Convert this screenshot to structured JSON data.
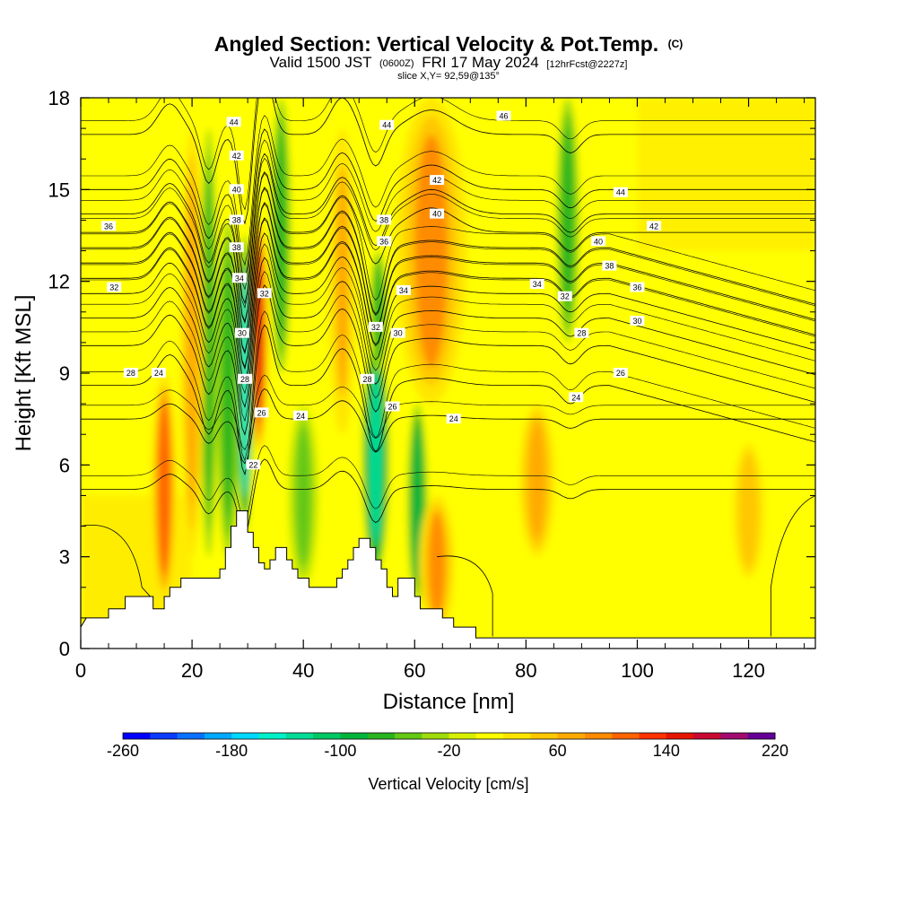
{
  "title": {
    "main": "Angled Section: Vertical Velocity & Pot.Temp.",
    "main_suffix": "(C)",
    "valid_prefix": "Valid 1500 JST",
    "valid_z": "(0600Z)",
    "valid_date": "FRI 17 May 2024",
    "fcst": "[12hrFcst@2227z]",
    "slice": "slice X,Y= 92,59@135°"
  },
  "chart_data": {
    "type": "heatmap",
    "title": "Angled Section: Vertical Velocity & Pot.Temp.",
    "xlabel": "Distance [nm]",
    "ylabel": "Height [Kft MSL]",
    "xlim": [
      0,
      132
    ],
    "ylim": [
      0,
      18
    ],
    "x_ticks": [
      "0",
      "20",
      "40",
      "60",
      "80",
      "100",
      "120"
    ],
    "y_ticks": [
      "0",
      "3",
      "6",
      "9",
      "12",
      "15",
      "18"
    ],
    "colorbar": {
      "title": "Vertical Velocity [cm/s]",
      "min": -260,
      "max": 220,
      "step": 20,
      "tick_labels": [
        "-260",
        "-180",
        "-100",
        "-20",
        "60",
        "140",
        "220"
      ],
      "tick_values": [
        -260,
        -180,
        -100,
        -20,
        60,
        140,
        220
      ],
      "colors": [
        "#0000ff",
        "#0a3cff",
        "#0a70ff",
        "#00a8ff",
        "#00d8ff",
        "#00f0c8",
        "#00dc96",
        "#00c864",
        "#00b43c",
        "#28b41e",
        "#64c814",
        "#a0dc0a",
        "#d7f000",
        "#ffff00",
        "#ffe600",
        "#ffc800",
        "#ffaa00",
        "#ff8c00",
        "#ff6400",
        "#ff3200",
        "#e61400",
        "#c80a32",
        "#a00a6e",
        "#640096"
      ]
    },
    "velocity_features": [
      {
        "x": 32,
        "y0": 6.5,
        "y1": 14,
        "w": 150,
        "half_width": 1.3,
        "sense": "updraft"
      },
      {
        "x": 29.5,
        "y0": 3.8,
        "y1": 13.5,
        "w": -150,
        "half_width": 1.1,
        "sense": "downdraft"
      },
      {
        "x": 26.5,
        "y0": 3.0,
        "y1": 14,
        "w": -80,
        "half_width": 1.6,
        "sense": "downdraft"
      },
      {
        "x": 23,
        "y0": 3.0,
        "y1": 17,
        "w": -70,
        "half_width": 1.2,
        "sense": "downdraft"
      },
      {
        "x": 20,
        "y0": 3.0,
        "y1": 17,
        "w": 70,
        "half_width": 1.6,
        "sense": "updraft"
      },
      {
        "x": 15,
        "y0": 1.5,
        "y1": 9,
        "w": 100,
        "half_width": 1.8,
        "sense": "updraft"
      },
      {
        "x": 36,
        "y0": 9.0,
        "y1": 18,
        "w": -70,
        "half_width": 1.4,
        "sense": "downdraft"
      },
      {
        "x": 40,
        "y0": 2.0,
        "y1": 8,
        "w": -45,
        "half_width": 2.2,
        "sense": "downdraft"
      },
      {
        "x": 47,
        "y0": 7.0,
        "y1": 17,
        "w": 60,
        "half_width": 2.0,
        "sense": "updraft"
      },
      {
        "x": 53,
        "y0": 2.5,
        "y1": 10,
        "w": -140,
        "half_width": 1.8,
        "sense": "downdraft"
      },
      {
        "x": 53.5,
        "y0": 9.0,
        "y1": 13,
        "w": -80,
        "half_width": 1.2,
        "sense": "downdraft"
      },
      {
        "x": 60.5,
        "y0": 1.5,
        "y1": 8,
        "w": -100,
        "half_width": 1.4,
        "sense": "downdraft"
      },
      {
        "x": 63,
        "y0": 8.0,
        "y1": 18,
        "w": 90,
        "half_width": 5.0,
        "sense": "updraft"
      },
      {
        "x": 64,
        "y0": 0.5,
        "y1": 5,
        "w": 90,
        "half_width": 2.5,
        "sense": "updraft"
      },
      {
        "x": 87.5,
        "y0": 10.0,
        "y1": 18,
        "w": -70,
        "half_width": 1.6,
        "sense": "downdraft"
      },
      {
        "x": 82,
        "y0": 3.0,
        "y1": 8,
        "w": 70,
        "half_width": 2.5,
        "sense": "updraft"
      },
      {
        "x": 120,
        "y0": 2.0,
        "y1": 7,
        "w": 50,
        "half_width": 3.0,
        "sense": "updraft"
      }
    ],
    "theta_levels": [
      22,
      24,
      26,
      28,
      30,
      32,
      34,
      36,
      38,
      40,
      42,
      44,
      46
    ],
    "contour_labels": [
      {
        "label": "44",
        "x": 27.5,
        "y": 17.2
      },
      {
        "label": "42",
        "x": 28.0,
        "y": 16.1
      },
      {
        "label": "40",
        "x": 28.0,
        "y": 15.0
      },
      {
        "label": "38",
        "x": 28.0,
        "y": 14.0
      },
      {
        "label": "38",
        "x": 28.0,
        "y": 13.1
      },
      {
        "label": "34",
        "x": 28.5,
        "y": 12.1
      },
      {
        "label": "32",
        "x": 33.0,
        "y": 11.6
      },
      {
        "label": "30",
        "x": 29.0,
        "y": 10.3
      },
      {
        "label": "28",
        "x": 29.5,
        "y": 8.8
      },
      {
        "label": "26",
        "x": 32.5,
        "y": 7.7
      },
      {
        "label": "22",
        "x": 31.0,
        "y": 6.0
      },
      {
        "label": "36",
        "x": 5.0,
        "y": 13.8
      },
      {
        "label": "32",
        "x": 6.0,
        "y": 11.8
      },
      {
        "label": "28",
        "x": 9.0,
        "y": 9.0
      },
      {
        "label": "24",
        "x": 14.0,
        "y": 9.0
      },
      {
        "label": "24",
        "x": 39.5,
        "y": 7.6
      },
      {
        "label": "44",
        "x": 55.0,
        "y": 17.1
      },
      {
        "label": "38",
        "x": 54.5,
        "y": 14.0
      },
      {
        "label": "36",
        "x": 54.5,
        "y": 13.3
      },
      {
        "label": "34",
        "x": 58.0,
        "y": 11.7
      },
      {
        "label": "32",
        "x": 53.0,
        "y": 10.5
      },
      {
        "label": "30",
        "x": 57.0,
        "y": 10.3
      },
      {
        "label": "28",
        "x": 51.5,
        "y": 8.8
      },
      {
        "label": "26",
        "x": 56.0,
        "y": 7.9
      },
      {
        "label": "24",
        "x": 67.0,
        "y": 7.5
      },
      {
        "label": "42",
        "x": 64.0,
        "y": 15.3
      },
      {
        "label": "40",
        "x": 64.0,
        "y": 14.2
      },
      {
        "label": "46",
        "x": 76.0,
        "y": 17.4
      },
      {
        "label": "44",
        "x": 97.0,
        "y": 14.9
      },
      {
        "label": "42",
        "x": 103.0,
        "y": 13.8
      },
      {
        "label": "40",
        "x": 93.0,
        "y": 13.3
      },
      {
        "label": "38",
        "x": 95.0,
        "y": 12.5
      },
      {
        "label": "36",
        "x": 100.0,
        "y": 11.8
      },
      {
        "label": "34",
        "x": 82.0,
        "y": 11.9
      },
      {
        "label": "32",
        "x": 87.0,
        "y": 11.5
      },
      {
        "label": "30",
        "x": 100.0,
        "y": 10.7
      },
      {
        "label": "28",
        "x": 90.0,
        "y": 10.3
      },
      {
        "label": "26",
        "x": 97.0,
        "y": 9.0
      },
      {
        "label": "24",
        "x": 89.0,
        "y": 8.2
      }
    ],
    "terrain": [
      [
        0,
        0.7
      ],
      [
        1,
        1.0
      ],
      [
        5,
        1.0
      ],
      [
        5,
        1.3
      ],
      [
        8,
        1.3
      ],
      [
        8,
        1.7
      ],
      [
        13,
        1.7
      ],
      [
        13,
        1.3
      ],
      [
        15,
        1.3
      ],
      [
        15,
        1.7
      ],
      [
        16,
        1.7
      ],
      [
        16,
        2.0
      ],
      [
        18,
        2.0
      ],
      [
        18,
        2.3
      ],
      [
        25,
        2.3
      ],
      [
        25,
        2.6
      ],
      [
        26,
        2.6
      ],
      [
        26,
        3.3
      ],
      [
        27,
        3.3
      ],
      [
        27,
        4.0
      ],
      [
        28,
        4.0
      ],
      [
        28,
        4.5
      ],
      [
        30,
        4.5
      ],
      [
        30,
        3.8
      ],
      [
        31,
        3.8
      ],
      [
        31,
        3.3
      ],
      [
        32,
        3.3
      ],
      [
        32,
        2.8
      ],
      [
        33,
        2.8
      ],
      [
        33,
        2.6
      ],
      [
        34,
        2.6
      ],
      [
        34,
        2.9
      ],
      [
        35,
        2.9
      ],
      [
        35,
        3.3
      ],
      [
        37,
        3.3
      ],
      [
        37,
        2.9
      ],
      [
        38,
        2.9
      ],
      [
        38,
        2.6
      ],
      [
        39,
        2.6
      ],
      [
        39,
        2.3
      ],
      [
        41,
        2.3
      ],
      [
        41,
        2.0
      ],
      [
        46,
        2.0
      ],
      [
        46,
        2.3
      ],
      [
        47,
        2.3
      ],
      [
        47,
        2.6
      ],
      [
        48,
        2.6
      ],
      [
        48,
        2.9
      ],
      [
        49,
        2.9
      ],
      [
        49,
        3.3
      ],
      [
        50,
        3.3
      ],
      [
        50,
        3.6
      ],
      [
        52,
        3.6
      ],
      [
        52,
        3.3
      ],
      [
        53,
        3.3
      ],
      [
        53,
        2.9
      ],
      [
        54,
        2.9
      ],
      [
        54,
        2.6
      ],
      [
        55,
        2.6
      ],
      [
        55,
        2.0
      ],
      [
        56,
        2.0
      ],
      [
        56,
        1.7
      ],
      [
        57,
        1.7
      ],
      [
        57,
        2.3
      ],
      [
        60,
        2.3
      ],
      [
        60,
        1.7
      ],
      [
        61,
        1.7
      ],
      [
        61,
        1.3
      ],
      [
        65,
        1.3
      ],
      [
        65,
        1.0
      ],
      [
        67,
        1.0
      ],
      [
        67,
        0.7
      ],
      [
        71,
        0.7
      ],
      [
        71,
        0.35
      ],
      [
        132,
        0.35
      ]
    ]
  }
}
